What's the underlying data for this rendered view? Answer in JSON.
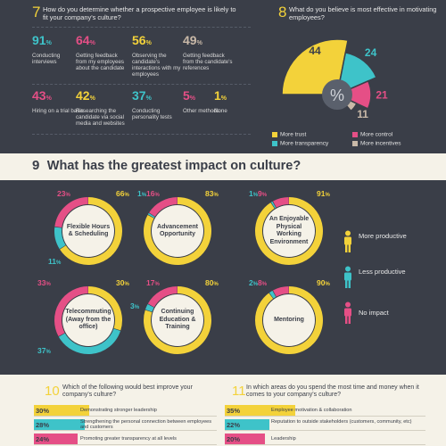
{
  "q7": {
    "number": "7",
    "question": "How do you determine whether a prospective employee is likely to fit your company's culture?",
    "stats": [
      {
        "value": "91",
        "color": "#3ec3c9",
        "label": "Conducting interviews"
      },
      {
        "value": "64",
        "color": "#e54f86",
        "label": "Getting feedback from my employees about the candidate"
      },
      {
        "value": "56",
        "color": "#f3d23a",
        "label": "Observing the candidate's interactions with my employees"
      },
      {
        "value": "49",
        "color": "#c9b9a8",
        "label": "Getting feedback from the candidate's references"
      },
      {
        "value": "43",
        "color": "#e54f86",
        "label": "Hiring on a trial basis"
      },
      {
        "value": "42",
        "color": "#f3d23a",
        "label": "Researching the candidate via social media and websites"
      },
      {
        "value": "37",
        "color": "#3ec3c9",
        "label": "Conducting personality tests"
      },
      {
        "value": "5",
        "color": "#e54f86",
        "label": "Other methods"
      },
      {
        "value": "1",
        "color": "#f3d23a",
        "label": "None"
      }
    ]
  },
  "q8": {
    "number": "8",
    "question": "What do you believe is most effective in motivating employees?",
    "center_symbol": "%",
    "slices": [
      {
        "value": 44,
        "color": "#f3d23a",
        "label": "More trust"
      },
      {
        "value": 24,
        "color": "#3ec3c9",
        "label": "More transparency"
      },
      {
        "value": 21,
        "color": "#e54f86",
        "label": "More control"
      },
      {
        "value": 11,
        "color": "#c9b9a8",
        "label": "More incentives"
      }
    ]
  },
  "q9": {
    "number": "9",
    "title": "What has the greatest impact on culture?",
    "rings": [
      {
        "label": "Flexible Hours & Scheduling",
        "yellow": 66,
        "pink": 23,
        "cyan": 11,
        "y_label": "66",
        "p_label": "23",
        "c_label": "11"
      },
      {
        "label": "Advancement Opportunity",
        "yellow": 83,
        "pink": 16,
        "cyan": 1,
        "y_label": "83",
        "p_label": "16",
        "c_label": "1"
      },
      {
        "label": "An Enjoyable Physical Working Environment",
        "yellow": 91,
        "pink": 9,
        "cyan": 1,
        "y_label": "91",
        "p_label": "9",
        "c_label": "1"
      },
      {
        "label": "Telecommuting (Away from the office)",
        "yellow": 30,
        "pink": 33,
        "cyan": 37,
        "y_label": "30",
        "p_label": "33",
        "c_label": "37"
      },
      {
        "label": "Continuing Education & Training",
        "yellow": 80,
        "pink": 17,
        "cyan": 3,
        "y_label": "80",
        "p_label": "17",
        "c_label": "3"
      },
      {
        "label": "Mentoring",
        "yellow": 90,
        "pink": 8,
        "cyan": 2,
        "y_label": "90",
        "p_label": "8",
        "c_label": "2"
      }
    ],
    "legend": [
      {
        "label": "More productive",
        "color": "#f3d23a"
      },
      {
        "label": "Less productive",
        "color": "#3ec3c9"
      },
      {
        "label": "No impact",
        "color": "#e54f86"
      }
    ]
  },
  "q10": {
    "number": "10",
    "question": "Which of the following would best improve your company's culture?",
    "bars": [
      {
        "pct": "30%",
        "value": 30,
        "color": "#f3d23a",
        "text": "Demonstrating stronger leadership"
      },
      {
        "pct": "28%",
        "value": 28,
        "color": "#3ec3c9",
        "text": "Strengthening the personal connection between employees and customers"
      },
      {
        "pct": "24%",
        "value": 24,
        "color": "#e54f86",
        "text": "Promoting greater transparency at all levels"
      }
    ]
  },
  "q11": {
    "number": "11",
    "question": "In which areas do you spend the most time and money when it comes to your company's culture?",
    "bars": [
      {
        "pct": "35%",
        "value": 35,
        "color": "#f3d23a",
        "text": "Employee motivation & collaboration"
      },
      {
        "pct": "22%",
        "value": 22,
        "color": "#3ec3c9",
        "text": "Reputation to outside stakeholders (customers, community, etc)"
      },
      {
        "pct": "20%",
        "value": 20,
        "color": "#e54f86",
        "text": "Leadership"
      }
    ]
  }
}
